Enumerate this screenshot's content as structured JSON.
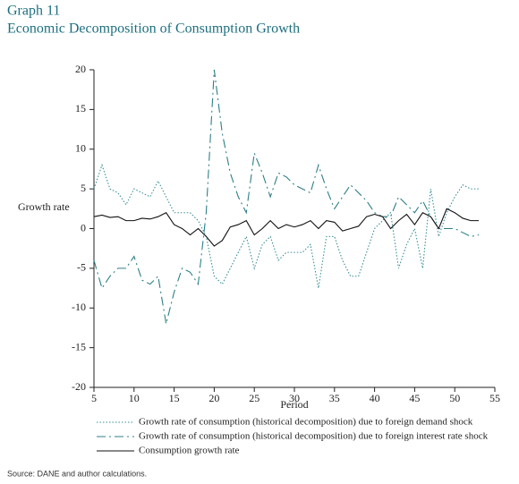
{
  "chart_data": {
    "type": "line",
    "title": "Graph 11",
    "subtitle": "Economic Decomposition of Consumption Growth",
    "y_label": "Growth rate",
    "x_label": "Period",
    "source": "Source: DANE and author calculations.",
    "x": [
      5,
      6,
      7,
      8,
      9,
      10,
      11,
      12,
      13,
      14,
      15,
      16,
      17,
      18,
      19,
      20,
      21,
      22,
      23,
      24,
      25,
      26,
      27,
      28,
      29,
      30,
      31,
      32,
      33,
      34,
      35,
      36,
      37,
      38,
      39,
      40,
      41,
      42,
      43,
      44,
      45,
      46,
      47,
      48,
      49,
      50,
      51,
      52,
      53
    ],
    "series": [
      {
        "name": "Growth rate of consumption (historical decomposition) due to foreign demand shock",
        "color": "#3a8f96",
        "dash": "dotted",
        "values": [
          5,
          8,
          5,
          4.5,
          3,
          5,
          4.5,
          4,
          6,
          4,
          2,
          2,
          2,
          1,
          -1,
          -6,
          -7,
          -5,
          -3,
          -1,
          -5,
          -2,
          -1,
          -4,
          -3,
          -3,
          -3,
          -2,
          -7.5,
          -1,
          -1,
          -4,
          -6,
          -6,
          -3,
          0,
          1,
          2,
          -5,
          -2,
          0,
          -5,
          5,
          -1,
          2,
          4,
          5.5,
          5,
          5
        ]
      },
      {
        "name": "Growth rate of consumption (historical decomposition) due to foreign interest rate shock",
        "color": "#2e7f86",
        "dash": "dashed",
        "values": [
          -4,
          -7.5,
          -6,
          -5,
          -5,
          -3.5,
          -6.5,
          -7,
          -6,
          -12,
          -8,
          -5,
          -5.5,
          -7,
          2,
          20,
          12,
          7,
          4,
          2,
          9.5,
          7,
          4,
          7,
          6.5,
          5.5,
          5,
          4.5,
          8,
          5,
          2.5,
          4,
          5.5,
          4.5,
          3.5,
          2,
          1.5,
          1.5,
          4,
          3,
          2,
          3.5,
          1.5,
          0,
          0,
          0,
          -0.5,
          -1,
          -0.8
        ]
      },
      {
        "name": "Consumption growth rate",
        "color": "#111111",
        "dash": "solid",
        "values": [
          1.5,
          1.7,
          1.4,
          1.5,
          1,
          1,
          1.3,
          1.2,
          1.5,
          2,
          0.5,
          0,
          -0.8,
          0,
          -1,
          -2.2,
          -1.5,
          0.2,
          0.5,
          1,
          -0.8,
          0,
          1,
          0,
          0.5,
          0.2,
          0.5,
          1,
          0,
          1,
          0.8,
          -0.3,
          0,
          0.3,
          1.5,
          1.8,
          1.5,
          0,
          1,
          1.8,
          0.5,
          2,
          1.5,
          0,
          2.5,
          2,
          1.3,
          1,
          1
        ]
      }
    ],
    "xlim": [
      5,
      55
    ],
    "xticks": [
      5,
      10,
      15,
      20,
      25,
      30,
      35,
      40,
      45,
      50,
      55
    ],
    "ylim": [
      -20,
      20
    ],
    "yticks": [
      -20,
      -15,
      -10,
      -5,
      0,
      5,
      10,
      15,
      20
    ]
  }
}
